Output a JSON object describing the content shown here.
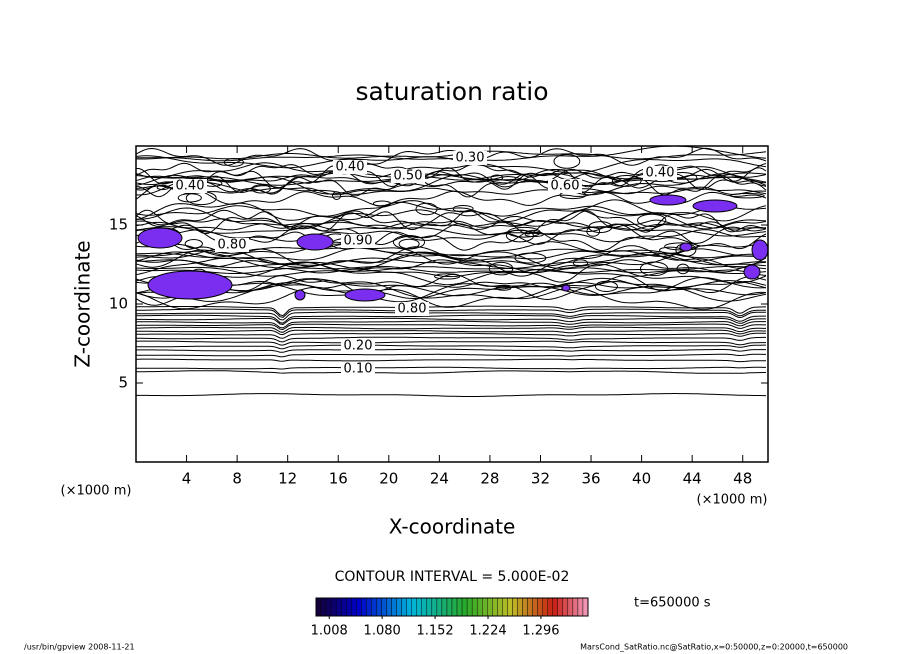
{
  "chart_data": {
    "type": "contour",
    "title": "saturation ratio",
    "x_label": "X-coordinate",
    "y_label": "Z-coordinate",
    "x_unit": "(×1000 m)",
    "xlim": [
      0,
      50
    ],
    "xticks": [
      4,
      8,
      12,
      16,
      20,
      24,
      28,
      32,
      36,
      40,
      44,
      48
    ],
    "ylim": [
      0,
      20
    ],
    "yticks": [
      5,
      10,
      15
    ],
    "fill_color": "#7a2ff0",
    "contour_labels": [
      "0.10",
      "0.20",
      "0.30",
      "0.40",
      "0.40",
      "0.40",
      "0.50",
      "0.60",
      "0.80",
      "0.80",
      "0.90"
    ],
    "contour_interval": "CONTOUR INTERVAL = 5.000E-02",
    "time_label": "t=650000 s",
    "colorbar": {
      "clim": [
        0.99,
        1.36
      ],
      "ticks": [
        1.008,
        {
          "value": 1.08,
          "label": "1.080"
        },
        1.152,
        1.224,
        1.296
      ]
    },
    "footer_left": "/usr/bin/gpview   2008-11-21",
    "footer_right": "MarsCond_SatRatio.nc@SatRatio,x=0:50000,z=0:20000,t=650000"
  }
}
